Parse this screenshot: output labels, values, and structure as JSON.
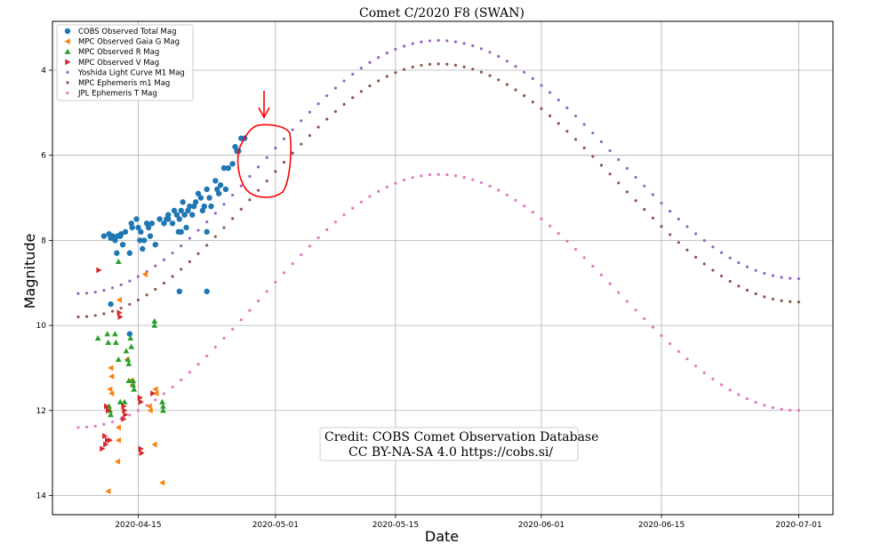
{
  "chart_data": {
    "type": "scatter",
    "title": "Comet C/2020 F8 (SWAN)",
    "xlabel": "Date",
    "ylabel": "Magnitude",
    "xlim": [
      "2020-04-05",
      "2020-07-05"
    ],
    "ylim": [
      14.45,
      2.85
    ],
    "y_inverted": true,
    "grid": true,
    "legend_position": "top-left",
    "x_ticks": [
      "2020-04-15",
      "2020-05-01",
      "2020-05-15",
      "2020-06-01",
      "2020-06-15",
      "2020-07-01"
    ],
    "y_ticks": [
      4,
      6,
      8,
      10,
      12,
      14
    ],
    "credit_lines": [
      "Credit: COBS Comet Observation Database",
      "CC BY-NA-SA 4.0  https://cobs.si/"
    ],
    "colors": {
      "cobs": "#1f77b4",
      "gaia": "#ff7f0e",
      "rmag": "#2ca02c",
      "vmag": "#d62728",
      "yoshida": "#9467bd",
      "mpc_eph": "#8c564b",
      "jpl": "#e377c2",
      "annotation": "#ff0000"
    },
    "series": [
      {
        "key": "cobs",
        "name": "COBS Observed Total Mag",
        "marker": "circle",
        "color": "#1f77b4",
        "points": [
          [
            "2020-04-11",
            7.9
          ],
          [
            "2020-04-11.6",
            7.85
          ],
          [
            "2020-04-11.8",
            7.95
          ],
          [
            "2020-04-12",
            7.9
          ],
          [
            "2020-04-12.3",
            8.0
          ],
          [
            "2020-04-12.5",
            8.3
          ],
          [
            "2020-04-12.6",
            7.9
          ],
          [
            "2020-04-12.9",
            7.9
          ],
          [
            "2020-04-13",
            7.85
          ],
          [
            "2020-04-13.2",
            8.1
          ],
          [
            "2020-04-13.5",
            7.8
          ],
          [
            "2020-04-11.8",
            9.5
          ],
          [
            "2020-04-14",
            8.3
          ],
          [
            "2020-04-14.2",
            7.6
          ],
          [
            "2020-04-14.3",
            7.7
          ],
          [
            "2020-04-14.8",
            7.5
          ],
          [
            "2020-04-15",
            7.7
          ],
          [
            "2020-04-15.2",
            8.0
          ],
          [
            "2020-04-15.3",
            7.8
          ],
          [
            "2020-04-15.5",
            8.2
          ],
          [
            "2020-04-15.7",
            8.0
          ],
          [
            "2020-04-16",
            7.6
          ],
          [
            "2020-04-16.2",
            7.7
          ],
          [
            "2020-04-16.4",
            7.9
          ],
          [
            "2020-04-16.6",
            7.6
          ],
          [
            "2020-04-17",
            8.1
          ],
          [
            "2020-04-17.5",
            7.5
          ],
          [
            "2020-04-18",
            7.6
          ],
          [
            "2020-04-18.3",
            7.5
          ],
          [
            "2020-04-18.5",
            7.4
          ],
          [
            "2020-04-19",
            7.6
          ],
          [
            "2020-04-19.2",
            7.3
          ],
          [
            "2020-04-19.5",
            7.4
          ],
          [
            "2020-04-19.7",
            7.8
          ],
          [
            "2020-04-19.8",
            7.5
          ],
          [
            "2020-04-20",
            7.3
          ],
          [
            "2020-04-20.2",
            7.1
          ],
          [
            "2020-04-20.4",
            7.4
          ],
          [
            "2020-04-20.6",
            7.7
          ],
          [
            "2020-04-20.8",
            7.3
          ],
          [
            "2020-04-21",
            7.2
          ],
          [
            "2020-04-21.3",
            7.4
          ],
          [
            "2020-04-21.5",
            7.2
          ],
          [
            "2020-04-21.7",
            7.1
          ],
          [
            "2020-04-22",
            6.9
          ],
          [
            "2020-04-22.3",
            7.0
          ],
          [
            "2020-04-22.5",
            7.3
          ],
          [
            "2020-04-22.7",
            7.2
          ],
          [
            "2020-04-23",
            6.8
          ],
          [
            "2020-04-23.3",
            7.0
          ],
          [
            "2020-04-23.5",
            7.2
          ],
          [
            "2020-04-24",
            6.6
          ],
          [
            "2020-04-24.2",
            6.8
          ],
          [
            "2020-04-24.4",
            6.9
          ],
          [
            "2020-04-24.6",
            6.7
          ],
          [
            "2020-04-25",
            6.3
          ],
          [
            "2020-04-25.2",
            6.8
          ],
          [
            "2020-04-25.5",
            6.3
          ],
          [
            "2020-04-26",
            6.2
          ],
          [
            "2020-04-26.3",
            5.8
          ],
          [
            "2020-04-26.5",
            5.9
          ],
          [
            "2020-04-26.7",
            5.9
          ],
          [
            "2020-04-27",
            5.6
          ],
          [
            "2020-04-27.4",
            5.6
          ],
          [
            "2020-04-19.8",
            9.2
          ],
          [
            "2020-04-23",
            9.2
          ],
          [
            "2020-04-23",
            7.8
          ],
          [
            "2020-04-14",
            10.2
          ],
          [
            "2020-04-18.5",
            7.5
          ],
          [
            "2020-04-20",
            7.8
          ]
        ]
      },
      {
        "key": "gaia",
        "name": "MPC Observed Gaia G Mag",
        "marker": "triangle-left",
        "color": "#ff7f0e",
        "points": [
          [
            "2020-04-12.8",
            9.4
          ],
          [
            "2020-04-15.8",
            8.8
          ],
          [
            "2020-04-11.8",
            11.0
          ],
          [
            "2020-04-11.9",
            11.2
          ],
          [
            "2020-04-11.7",
            11.5
          ],
          [
            "2020-04-11.9",
            11.6
          ],
          [
            "2020-04-13.7",
            10.8
          ],
          [
            "2020-04-14.1",
            11.3
          ],
          [
            "2020-04-14.3",
            11.4
          ],
          [
            "2020-04-16.3",
            11.9
          ],
          [
            "2020-04-16.4",
            12.0
          ],
          [
            "2020-04-17",
            11.5
          ],
          [
            "2020-04-17.1",
            11.6
          ],
          [
            "2020-04-12.7",
            12.4
          ],
          [
            "2020-04-12.7",
            12.7
          ],
          [
            "2020-04-16.9",
            12.8
          ],
          [
            "2020-04-12.6",
            13.2
          ],
          [
            "2020-04-17.8",
            13.7
          ],
          [
            "2020-04-11.5",
            13.9
          ]
        ]
      },
      {
        "key": "rmag",
        "name": "MPC Observed R Mag",
        "marker": "triangle-up",
        "color": "#2ca02c",
        "points": [
          [
            "2020-04-12.7",
            8.5
          ],
          [
            "2020-04-16.9",
            9.9
          ],
          [
            "2020-04-16.9",
            10.0
          ],
          [
            "2020-04-10.3",
            10.3
          ],
          [
            "2020-04-11.4",
            10.2
          ],
          [
            "2020-04-11.5",
            10.4
          ],
          [
            "2020-04-12.3",
            10.2
          ],
          [
            "2020-04-12.4",
            10.4
          ],
          [
            "2020-04-13.8",
            10.8
          ],
          [
            "2020-04-13.9",
            10.9
          ],
          [
            "2020-04-13.6",
            10.6
          ],
          [
            "2020-04-14.1",
            10.3
          ],
          [
            "2020-04-14.2",
            10.5
          ],
          [
            "2020-04-12.7",
            10.8
          ],
          [
            "2020-04-13.9",
            11.3
          ],
          [
            "2020-04-14.4",
            11.4
          ],
          [
            "2020-04-14.5",
            11.5
          ],
          [
            "2020-04-14.4",
            11.3
          ],
          [
            "2020-04-12.9",
            11.8
          ],
          [
            "2020-04-13.4",
            11.8
          ],
          [
            "2020-04-11.6",
            11.9
          ],
          [
            "2020-04-11.7",
            12.0
          ],
          [
            "2020-04-11.8",
            12.1
          ],
          [
            "2020-04-17.8",
            11.8
          ],
          [
            "2020-04-17.9",
            11.9
          ],
          [
            "2020-04-17.9",
            12.0
          ]
        ]
      },
      {
        "key": "vmag",
        "name": "MPC Observed V Mag",
        "marker": "triangle-right",
        "color": "#d62728",
        "points": [
          [
            "2020-04-10.4",
            8.7
          ],
          [
            "2020-04-12.8",
            9.7
          ],
          [
            "2020-04-12.9",
            9.8
          ],
          [
            "2020-04-15.2",
            11.7
          ],
          [
            "2020-04-15.3",
            11.8
          ],
          [
            "2020-04-16.7",
            11.6
          ],
          [
            "2020-04-13.3",
            11.9
          ],
          [
            "2020-04-13.4",
            12.0
          ],
          [
            "2020-04-13.5",
            12.1
          ],
          [
            "2020-04-13.3",
            12.2
          ],
          [
            "2020-04-11.3",
            11.9
          ],
          [
            "2020-04-11.5",
            12.0
          ],
          [
            "2020-04-11.1",
            12.6
          ],
          [
            "2020-04-11.4",
            12.7
          ],
          [
            "2020-04-11.2",
            12.8
          ],
          [
            "2020-04-10.8",
            12.9
          ],
          [
            "2020-04-11.7",
            12.7
          ],
          [
            "2020-04-15.3",
            12.9
          ],
          [
            "2020-04-15.4",
            13.0
          ]
        ]
      },
      {
        "key": "yoshida",
        "name": "Yoshida Light Curve M1 Mag",
        "marker": "dot",
        "color": "#9467bd",
        "curve": {
          "x_start": "2020-04-08",
          "x_end": "2020-07-01",
          "peak_date": "2020-05-20",
          "start_mag": 9.25,
          "peak_mag": 3.3,
          "end_mag": 8.9
        }
      },
      {
        "key": "mpc_eph",
        "name": "MPC Ephemeris m1 Mag",
        "marker": "dot",
        "color": "#8c564b",
        "curve": {
          "x_start": "2020-04-08",
          "x_end": "2020-07-01",
          "peak_date": "2020-05-20",
          "start_mag": 9.8,
          "peak_mag": 3.85,
          "end_mag": 9.45
        }
      },
      {
        "key": "jpl",
        "name": "JPL Ephemeris T Mag",
        "marker": "dot",
        "color": "#e377c2",
        "curve": {
          "x_start": "2020-04-08",
          "x_end": "2020-07-01",
          "peak_date": "2020-05-20",
          "start_mag": 12.4,
          "peak_mag": 6.45,
          "end_mag": 12.0
        }
      }
    ]
  }
}
